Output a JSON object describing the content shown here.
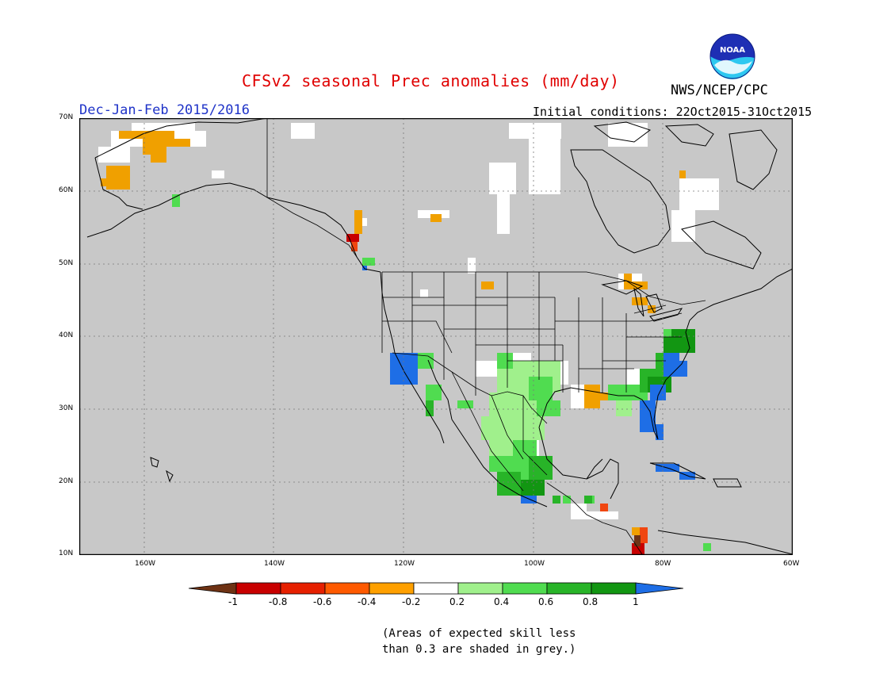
{
  "title": "CFSv2 seasonal Prec anomalies (mm/day)",
  "season_label": "Dec-Jan-Feb 2015/2016",
  "initial_conditions": "Initial conditions: 22Oct2015-31Oct2015",
  "agency": "NWS/NCEP/CPC",
  "logo_text": "NOAA",
  "map": {
    "lat_labels": [
      "70N",
      "60N",
      "50N",
      "40N",
      "30N",
      "20N",
      "10N"
    ],
    "lon_labels": [
      "160W",
      "140W",
      "120W",
      "100W",
      "80W",
      "60W"
    ],
    "projection_extent": {
      "lon_min": -170,
      "lon_max": -60,
      "lat_min": 10,
      "lat_max": 70
    },
    "grey_meaning": "skill < 0.3",
    "colors": {
      "grey": "#c8c8c8",
      "white": "#ffffff",
      "light_green": "#a0f08c",
      "green": "#50dc50",
      "mid_green": "#28b428",
      "dark_green": "#129612",
      "blue": "#1e6ee6",
      "orange": "#f0a000",
      "red_orange": "#f04610",
      "dark_red": "#c80000",
      "brown": "#6e3214"
    }
  },
  "legend": {
    "labels": [
      "-1",
      "-0.8",
      "-0.6",
      "-0.4",
      "-0.2",
      "0.2",
      "0.4",
      "0.6",
      "0.8",
      "1"
    ],
    "colors": [
      "#6e3214",
      "#c80000",
      "#e62000",
      "#ff5a00",
      "#ffa000",
      "#ffffff",
      "#a0f08c",
      "#50dc50",
      "#28b428",
      "#129612",
      "#1e6ee6"
    ]
  },
  "note_line1": "(Areas of expected skill less",
  "note_line2": "than 0.3 are shaded in grey.)"
}
